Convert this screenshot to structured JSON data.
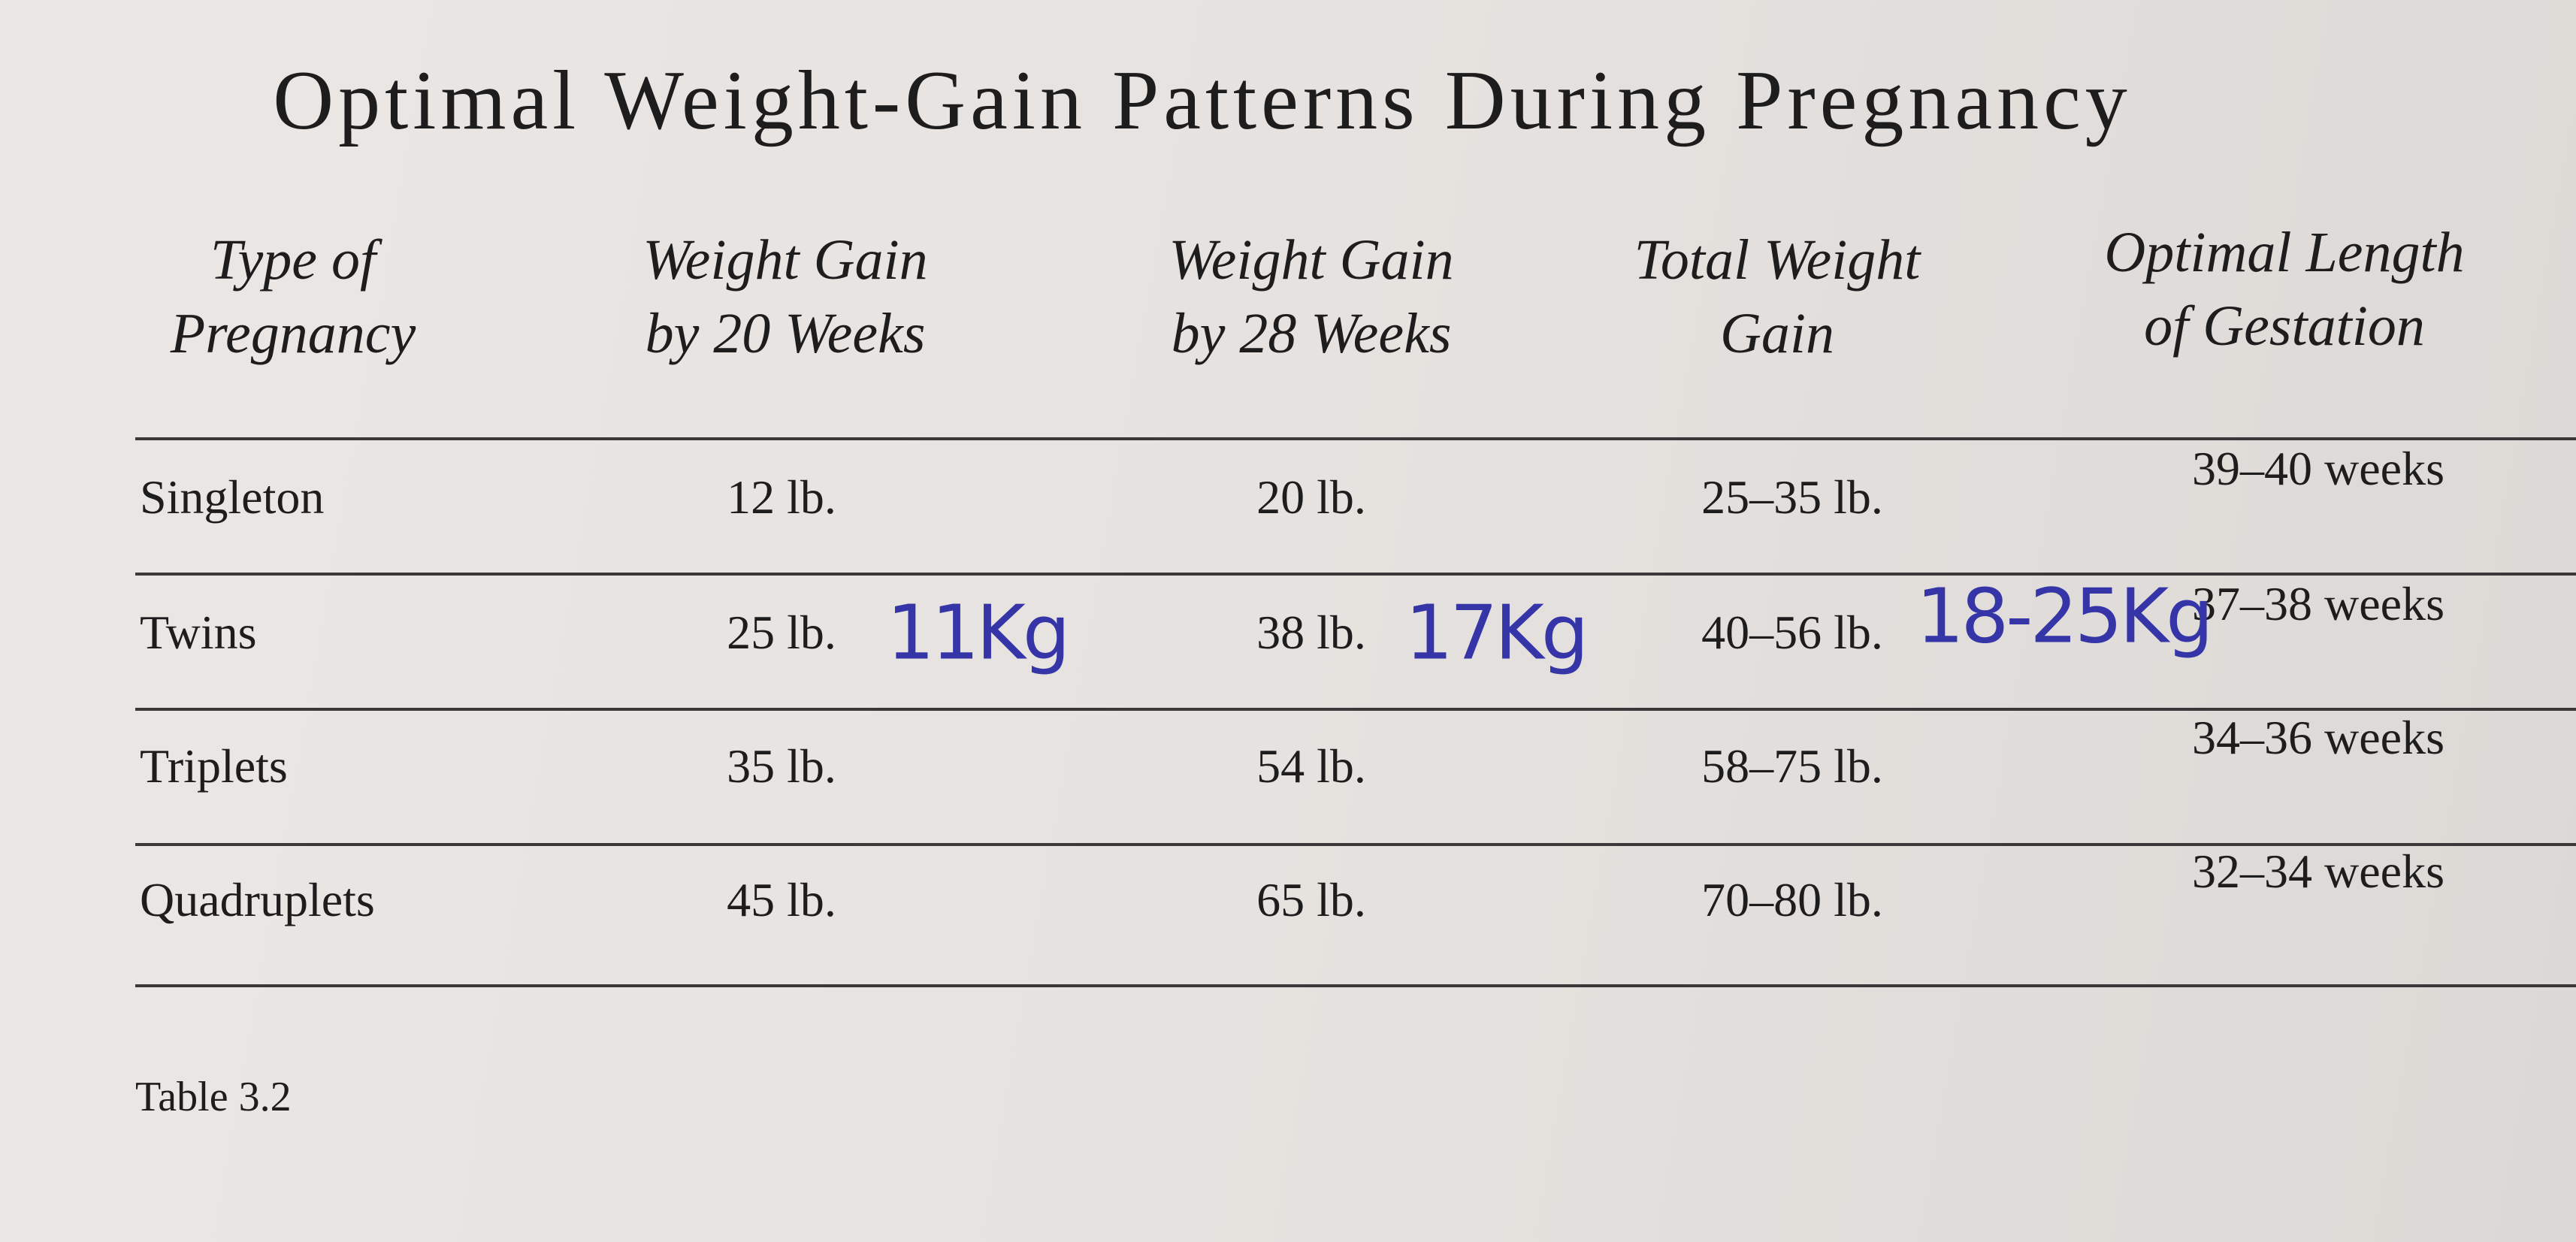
{
  "header": {
    "title": "Optimal Weight-Gain Patterns During Pregnancy"
  },
  "table": {
    "columns": [
      [
        "Type of",
        "Pregnancy"
      ],
      [
        "Weight Gain",
        "by 20 Weeks"
      ],
      [
        "Weight Gain",
        "by 28 Weeks"
      ],
      [
        "Total Weight",
        "Gain"
      ],
      [
        "Optimal Length",
        "of Gestation"
      ]
    ],
    "rows": [
      [
        "Singleton",
        "12 lb.",
        "20 lb.",
        "25–35 lb.",
        "39–40 weeks"
      ],
      [
        "Twins",
        "25 lb.",
        "38 lb.",
        "40–56 lb.",
        "37–38 weeks"
      ],
      [
        "Triplets",
        "35 lb.",
        "54 lb.",
        "58–75 lb.",
        "34–36 weeks"
      ],
      [
        "Quadruplets",
        "45 lb.",
        "65 lb.",
        "70–80 lb.",
        "32–34 weeks"
      ]
    ]
  },
  "annotations": [
    "11Kg",
    "17Kg",
    "18-25Kg"
  ],
  "caption": "Table 3.2"
}
